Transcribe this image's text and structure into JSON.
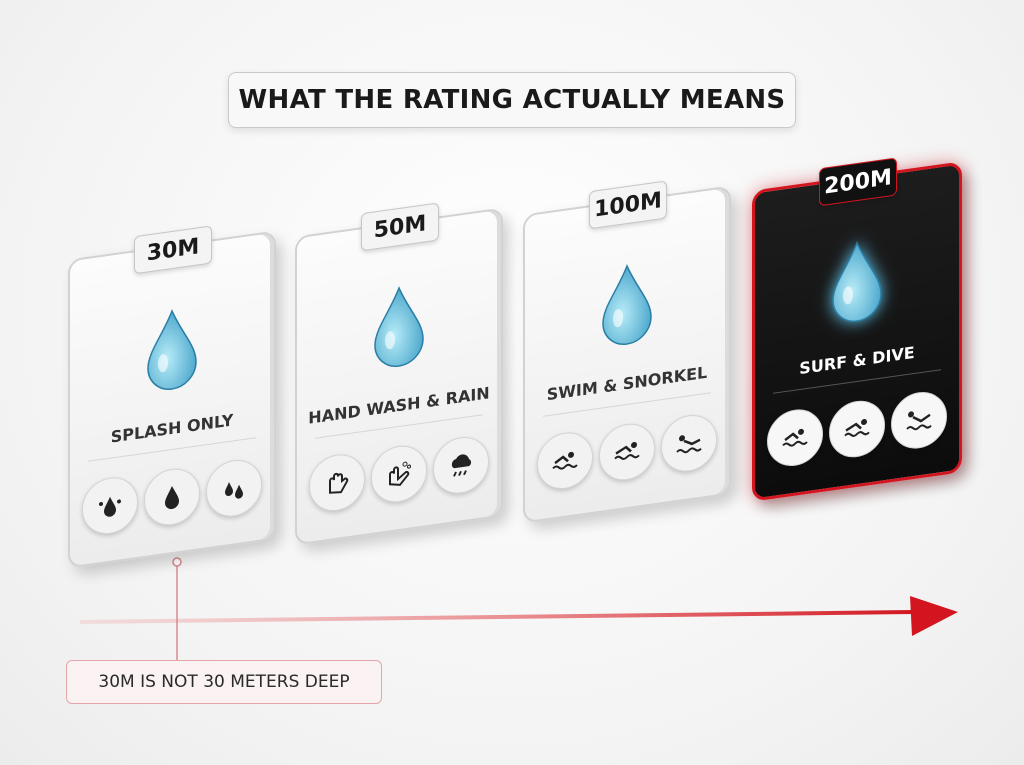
{
  "title": "WHAT THE RATING ACTUALLY MEANS",
  "cards": [
    {
      "tag": "30M",
      "label": "SPLASH ONLY"
    },
    {
      "tag": "50M",
      "label": "HAND WASH & RAIN"
    },
    {
      "tag": "100M",
      "label": "SWIM & SNORKEL"
    },
    {
      "tag": "200M",
      "label": "SURF & DIVE"
    }
  ],
  "note": "30M IS NOT 30 METERS DEEP"
}
